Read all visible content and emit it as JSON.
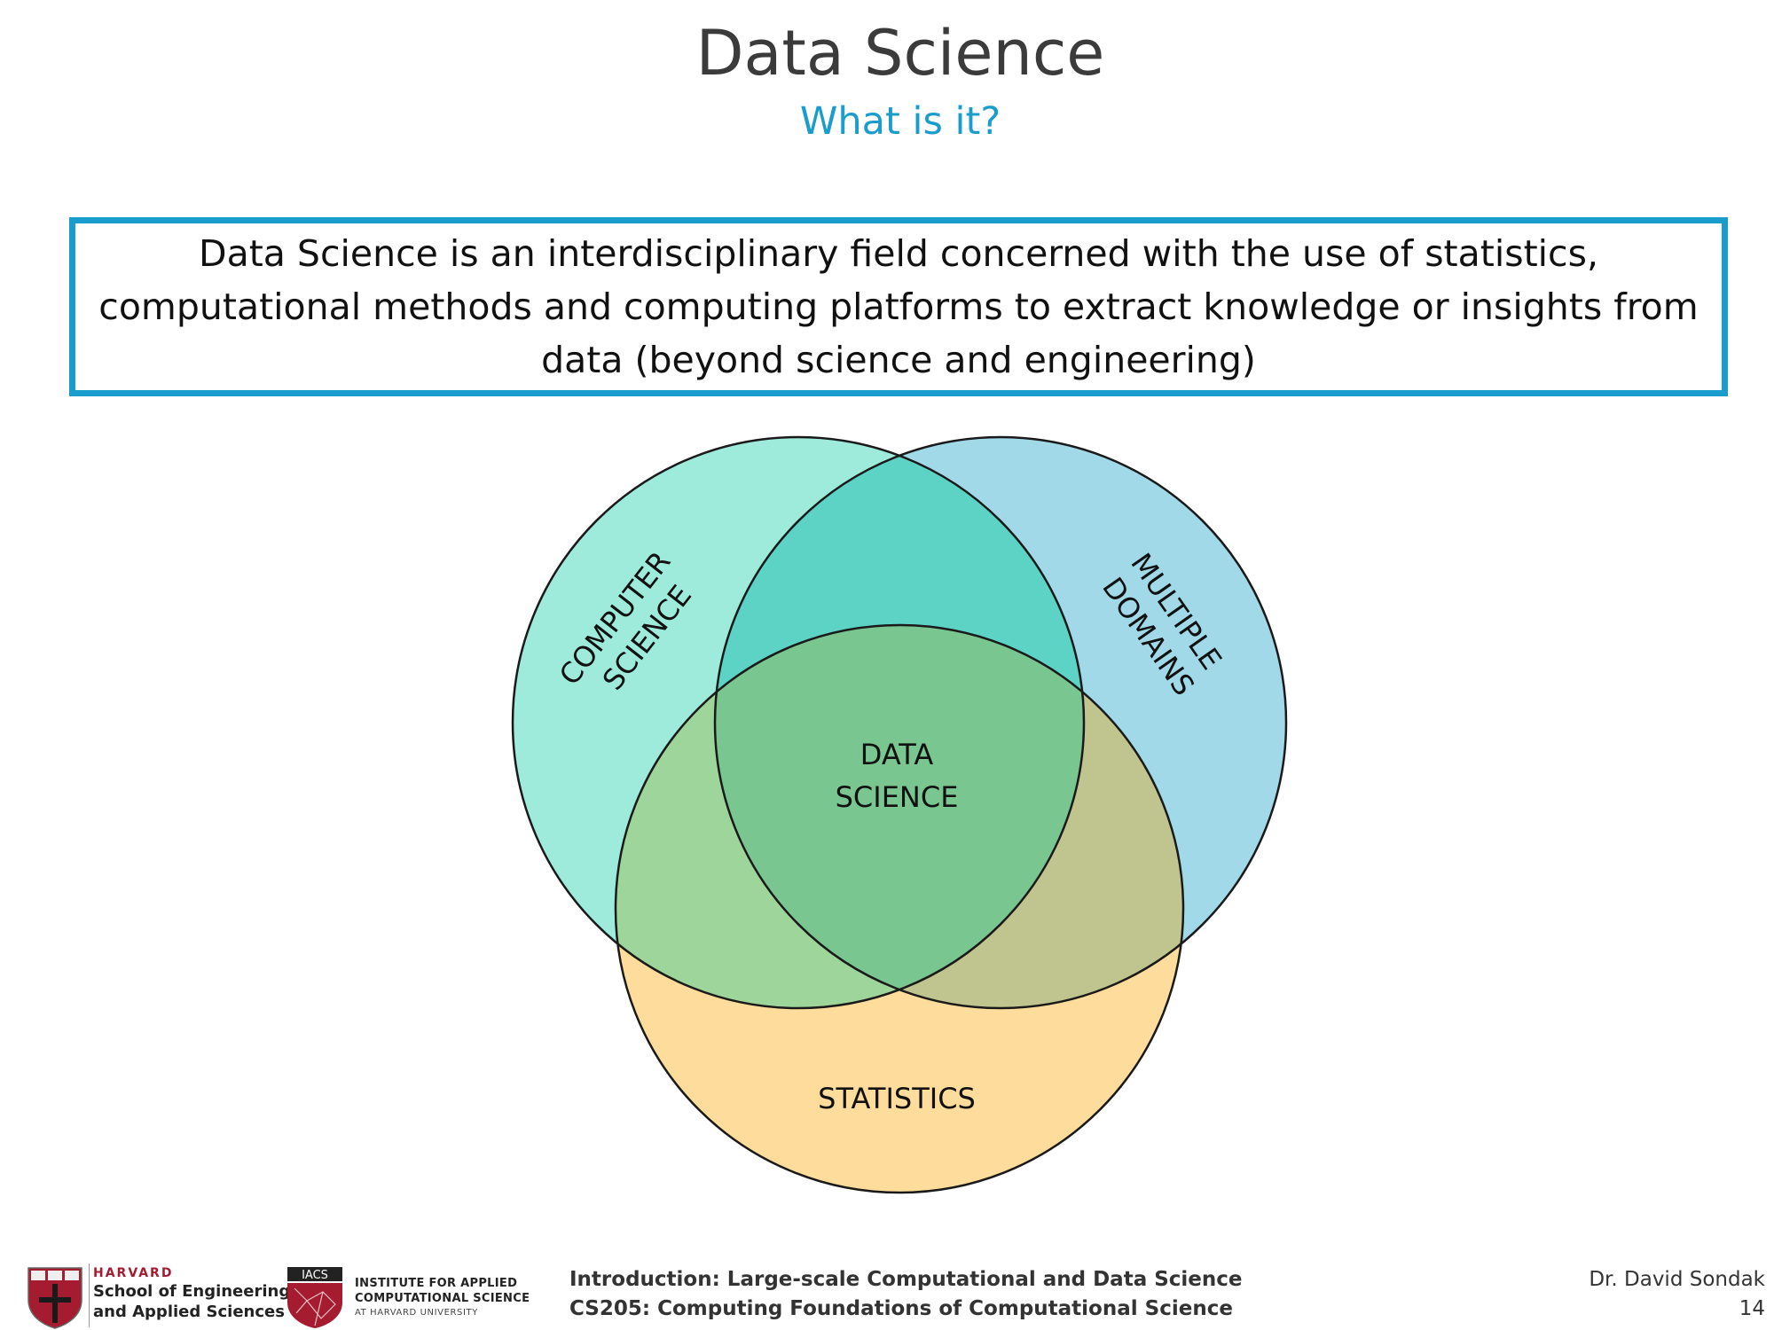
{
  "slide": {
    "title": "Data Science",
    "subtitle": "What is it?",
    "definition": "Data Science is an interdisciplinary field concerned with the use of statistics, computational methods and computing platforms to extract knowledge or insights from data (beyond science and engineering)"
  },
  "venn": {
    "computer_science": [
      "COMPUTER",
      "SCIENCE"
    ],
    "multiple_domains": [
      "MULTIPLE",
      "DOMAINS"
    ],
    "statistics": "STATISTICS",
    "center": [
      "DATA",
      "SCIENCE"
    ],
    "colors": {
      "computer_science": "#9eeadb",
      "multiple_domains": "#a1d9e9",
      "statistics": "#fedc9b",
      "cs_md": "#5dd3c6",
      "cs_stat": "#9ed59b",
      "md_stat": "#c0c48f",
      "center": "#79c690"
    }
  },
  "footer": {
    "seas": {
      "harvard": "HARVARD",
      "line1": "School of Engineering",
      "line2": "and Applied Sciences"
    },
    "iacs": {
      "abbr": "IACS",
      "line1": "INSTITUTE FOR APPLIED",
      "line2": "COMPUTATIONAL SCIENCE",
      "line3": "AT HARVARD UNIVERSITY"
    },
    "course_line1": "Introduction: Large-scale Computational and Data Science",
    "course_line2": "CS205: Computing Foundations of Computational Science",
    "author": "Dr. David Sondak",
    "page_number": "14"
  }
}
